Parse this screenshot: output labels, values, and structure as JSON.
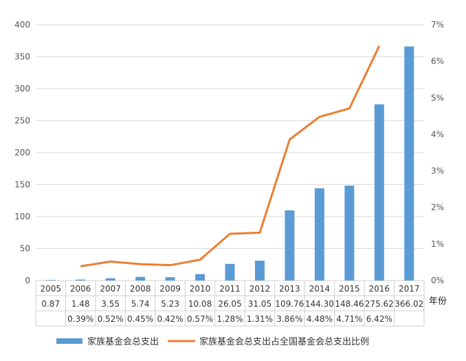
{
  "chart_data": {
    "type": "bar",
    "categories": [
      "2005",
      "2006",
      "2007",
      "2008",
      "2009",
      "2010",
      "2011",
      "2012",
      "2013",
      "2014",
      "2015",
      "2016",
      "2017"
    ],
    "xlabel": "年份",
    "y_left": {
      "ticks": [
        "0",
        "50",
        "100",
        "150",
        "200",
        "250",
        "300",
        "350",
        "400"
      ],
      "ylim": [
        0,
        400
      ]
    },
    "y_right": {
      "ticks": [
        "0%",
        "1%",
        "2%",
        "3%",
        "4%",
        "5%",
        "6%",
        "7%"
      ],
      "ylim": [
        0,
        7
      ]
    },
    "series": [
      {
        "name": "家族基金会总支出",
        "type": "bar",
        "axis": "left",
        "color": "#5b9bd5",
        "values": [
          0.87,
          1.48,
          3.55,
          5.74,
          5.23,
          10.08,
          26.05,
          31.05,
          109.76,
          144.3,
          148.46,
          275.62,
          366.02
        ],
        "labels": [
          "0.87",
          "1.48",
          "3.55",
          "5.74",
          "5.23",
          "10.08",
          "26.05",
          "31.05",
          "109.76",
          "144.30",
          "148.46",
          "275.62",
          "366.02"
        ]
      },
      {
        "name": "家族基金会总支出占全国基金会总支出比例",
        "type": "line",
        "axis": "right",
        "color": "#ed7d31",
        "values": [
          null,
          0.39,
          0.52,
          0.45,
          0.42,
          0.57,
          1.28,
          1.31,
          3.86,
          4.48,
          4.71,
          6.42,
          null
        ],
        "labels": [
          "",
          "0.39%",
          "0.52%",
          "0.45%",
          "0.42%",
          "0.57%",
          "1.28%",
          "1.31%",
          "3.86%",
          "4.48%",
          "4.71%",
          "6.42%",
          ""
        ]
      }
    ],
    "legend": "bottom",
    "grid": true
  }
}
